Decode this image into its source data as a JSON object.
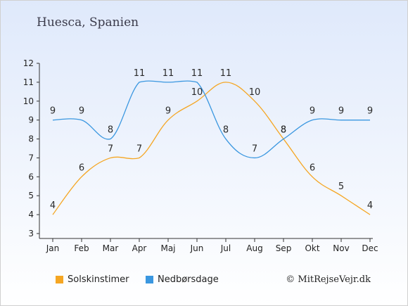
{
  "header": {
    "title": "Huesca, Spanien"
  },
  "footer": {
    "credit": "© MitRejseVejr.dk"
  },
  "chart_data": {
    "type": "line",
    "categories": [
      "Jan",
      "Feb",
      "Mar",
      "Apr",
      "Maj",
      "Jun",
      "Jul",
      "Aug",
      "Sep",
      "Okt",
      "Nov",
      "Dec"
    ],
    "ylim": [
      3,
      12
    ],
    "yticks": [
      3,
      4,
      5,
      6,
      7,
      8,
      9,
      10,
      11,
      12
    ],
    "grid": false,
    "legend_position": "bottom",
    "series": [
      {
        "name": "Solskinstimer",
        "color": "#f5a623",
        "values": [
          4,
          6,
          7,
          7,
          9,
          10,
          11,
          10,
          8,
          6,
          5,
          4
        ]
      },
      {
        "name": "Nedbørsdage",
        "color": "#3a97e0",
        "values": [
          9,
          9,
          8,
          11,
          11,
          11,
          8,
          7,
          8,
          9,
          9,
          9
        ]
      }
    ]
  }
}
